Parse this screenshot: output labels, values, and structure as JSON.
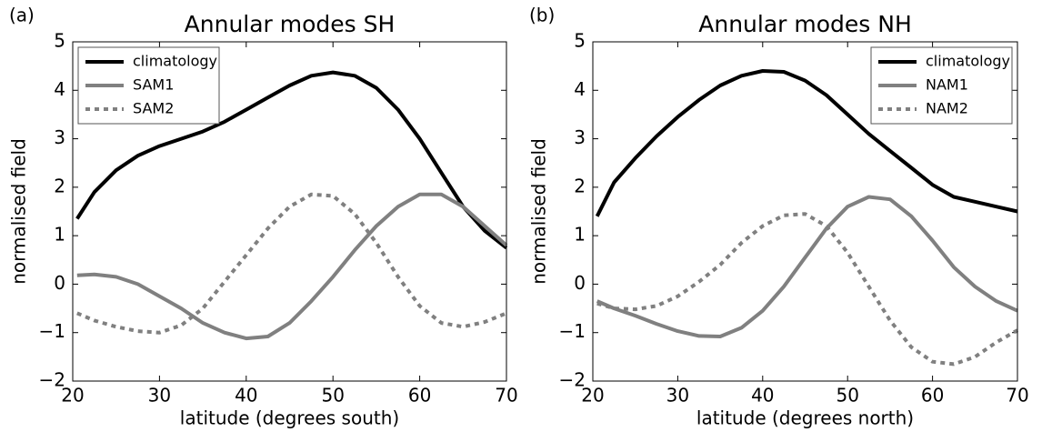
{
  "chart_data": [
    {
      "type": "line",
      "panel_label": "(a)",
      "title": "Annular modes SH",
      "x_label": "latitude (degrees south)",
      "y_label": "normalised field",
      "x": [
        20.5,
        22.5,
        25,
        27.5,
        30,
        32.5,
        35,
        37.5,
        40,
        42.5,
        45,
        47.5,
        50,
        52.5,
        55,
        57.5,
        60,
        62.5,
        65,
        67.5,
        70
      ],
      "series": [
        {
          "name": "climatology",
          "color": "#000000",
          "linestyle": "solid",
          "values": [
            1.35,
            1.9,
            2.35,
            2.65,
            2.85,
            3.0,
            3.15,
            3.35,
            3.6,
            3.85,
            4.1,
            4.3,
            4.37,
            4.3,
            4.05,
            3.6,
            3.0,
            2.3,
            1.6,
            1.1,
            0.75
          ]
        },
        {
          "name": "SAM1",
          "color": "#808080",
          "linestyle": "solid",
          "values": [
            0.18,
            0.2,
            0.15,
            0.0,
            -0.25,
            -0.5,
            -0.8,
            -1.0,
            -1.12,
            -1.08,
            -0.8,
            -0.35,
            0.15,
            0.7,
            1.2,
            1.6,
            1.85,
            1.85,
            1.6,
            1.2,
            0.8
          ]
        },
        {
          "name": "SAM2",
          "color": "#808080",
          "linestyle": "dashed",
          "values": [
            -0.6,
            -0.75,
            -0.88,
            -0.97,
            -1.0,
            -0.85,
            -0.5,
            0.05,
            0.6,
            1.15,
            1.6,
            1.85,
            1.82,
            1.45,
            0.85,
            0.15,
            -0.45,
            -0.8,
            -0.88,
            -0.78,
            -0.6
          ]
        }
      ],
      "xlim": [
        20,
        70
      ],
      "xticks": [
        20,
        30,
        40,
        50,
        60,
        70
      ],
      "ylim": [
        -2,
        5
      ],
      "yticks": [
        {
          "value": -2,
          "label": "−2"
        },
        {
          "value": -1,
          "label": "−1"
        },
        0,
        1,
        2,
        3,
        4,
        5
      ],
      "grid": false,
      "legend_position": "upper-left"
    },
    {
      "type": "line",
      "panel_label": "(b)",
      "title": "Annular modes NH",
      "x_label": "latitude (degrees north)",
      "y_label": "normalised field",
      "x": [
        20.5,
        22.5,
        25,
        27.5,
        30,
        32.5,
        35,
        37.5,
        40,
        42.5,
        45,
        47.5,
        50,
        52.5,
        55,
        57.5,
        60,
        62.5,
        65,
        67.5,
        70
      ],
      "series": [
        {
          "name": "climatology",
          "color": "#000000",
          "linestyle": "solid",
          "values": [
            1.4,
            2.1,
            2.6,
            3.05,
            3.45,
            3.8,
            4.1,
            4.3,
            4.4,
            4.38,
            4.2,
            3.9,
            3.5,
            3.1,
            2.75,
            2.4,
            2.05,
            1.8,
            1.7,
            1.6,
            1.5
          ]
        },
        {
          "name": "NAM1",
          "color": "#808080",
          "linestyle": "solid",
          "values": [
            -0.35,
            -0.5,
            -0.65,
            -0.82,
            -0.97,
            -1.07,
            -1.08,
            -0.9,
            -0.55,
            -0.05,
            0.55,
            1.15,
            1.6,
            1.8,
            1.75,
            1.4,
            0.9,
            0.35,
            -0.05,
            -0.35,
            -0.55
          ]
        },
        {
          "name": "NAM2",
          "color": "#808080",
          "linestyle": "dashed",
          "values": [
            -0.4,
            -0.5,
            -0.52,
            -0.45,
            -0.25,
            0.05,
            0.4,
            0.85,
            1.2,
            1.42,
            1.45,
            1.2,
            0.65,
            -0.05,
            -0.75,
            -1.3,
            -1.6,
            -1.65,
            -1.5,
            -1.2,
            -0.95
          ]
        }
      ],
      "xlim": [
        20,
        70
      ],
      "xticks": [
        20,
        30,
        40,
        50,
        60,
        70
      ],
      "ylim": [
        -2,
        5
      ],
      "yticks": [
        {
          "value": -2,
          "label": "−2"
        },
        {
          "value": -1,
          "label": "−1"
        },
        0,
        1,
        2,
        3,
        4,
        5
      ],
      "grid": false,
      "legend_position": "upper-right"
    }
  ]
}
